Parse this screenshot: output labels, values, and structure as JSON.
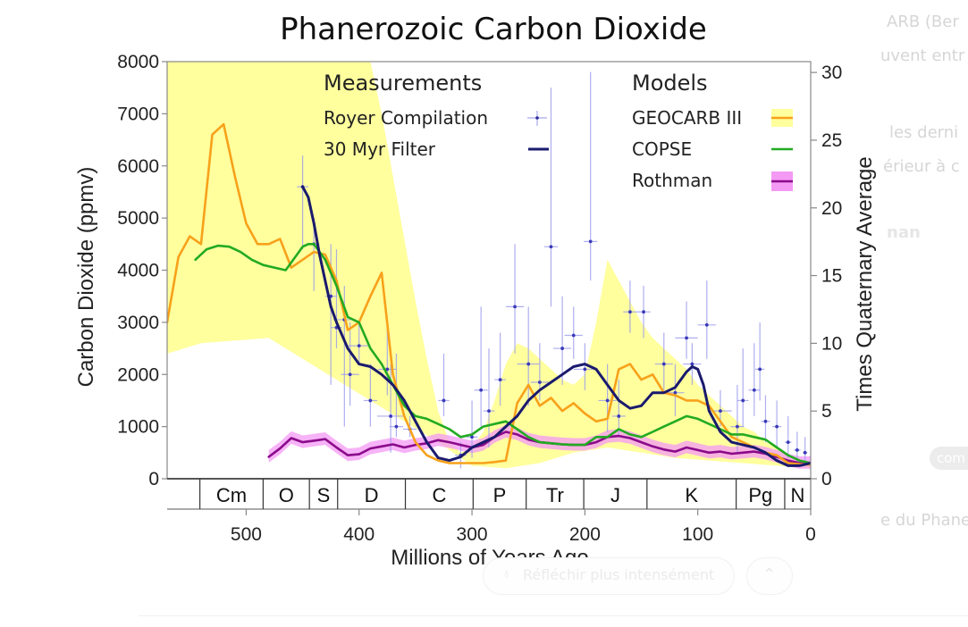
{
  "background_ui": {
    "right_text_lines": [
      "ARB (Ber",
      "uvent entr",
      "les derni",
      "érieur à c",
      "nan"
    ],
    "badge_label": "com",
    "caption_fragment": "e du Phane",
    "think_button_label": "Réfléchir plus intensément",
    "collapse_icon": "chevron-up-icon"
  },
  "chart_data": {
    "type": "line",
    "title": "Phanerozoic Carbon Dioxide",
    "xlabel": "Millions of Years Ago",
    "ylabel": "Carbon Dioxide (ppmv)",
    "y2label": "Times Quaternary Average",
    "xlim": [
      570,
      0
    ],
    "ylim": [
      0,
      8000
    ],
    "y2lim": [
      0,
      30.8
    ],
    "xticks": [
      500,
      400,
      300,
      200,
      100,
      0
    ],
    "yticks": [
      0,
      1000,
      2000,
      3000,
      4000,
      5000,
      6000,
      7000,
      8000
    ],
    "y2ticks": [
      0,
      5,
      10,
      15,
      20,
      25,
      30
    ],
    "grid": false,
    "legend_placement": "top",
    "legend": {
      "measurements_heading": "Measurements",
      "models_heading": "Models",
      "items": [
        {
          "label": "Royer Compilation",
          "group": "Measurements",
          "symbol": "cross"
        },
        {
          "label": "30 Myr Filter",
          "group": "Measurements",
          "symbol": "line"
        },
        {
          "label": "GEOCARB III",
          "group": "Models",
          "symbol": "line-band"
        },
        {
          "label": "COPSE",
          "group": "Models",
          "symbol": "line"
        },
        {
          "label": "Rothman",
          "group": "Models",
          "symbol": "line-band"
        }
      ]
    },
    "colors": {
      "geocarb": "#f7a11a",
      "geocarb_band": "#ffff9e",
      "copse": "#22aa22",
      "rothman": "#8b0a8b",
      "rothman_band": "#f49af4",
      "filter": "#1a1a6e",
      "royer": "#3a3ab8",
      "royer_bar": "#9a9aee"
    },
    "geological_periods": [
      {
        "label": "",
        "start": 570,
        "end": 541
      },
      {
        "label": "Cm",
        "start": 541,
        "end": 485
      },
      {
        "label": "O",
        "start": 485,
        "end": 444
      },
      {
        "label": "S",
        "start": 444,
        "end": 419
      },
      {
        "label": "D",
        "start": 419,
        "end": 359
      },
      {
        "label": "C",
        "start": 359,
        "end": 299
      },
      {
        "label": "P",
        "start": 299,
        "end": 252
      },
      {
        "label": "Tr",
        "start": 252,
        "end": 201
      },
      {
        "label": "J",
        "start": 201,
        "end": 145
      },
      {
        "label": "K",
        "start": 145,
        "end": 66
      },
      {
        "label": "Pg",
        "start": 66,
        "end": 23
      },
      {
        "label": "N",
        "start": 23,
        "end": 0
      }
    ],
    "series": [
      {
        "name": "GEOCARB III",
        "x": [
          570,
          560,
          550,
          540,
          530,
          520,
          510,
          500,
          490,
          480,
          470,
          460,
          450,
          440,
          430,
          420,
          410,
          400,
          390,
          380,
          370,
          360,
          350,
          340,
          330,
          320,
          310,
          300,
          290,
          280,
          270,
          260,
          250,
          240,
          230,
          220,
          210,
          200,
          190,
          180,
          170,
          160,
          150,
          140,
          130,
          120,
          110,
          100,
          90,
          80,
          70,
          60,
          50,
          40,
          30,
          20,
          10,
          0
        ],
        "y": [
          3000,
          4250,
          4650,
          4500,
          6600,
          6800,
          5800,
          4900,
          4500,
          4500,
          4600,
          4050,
          4200,
          4350,
          4300,
          3800,
          2850,
          3000,
          3500,
          3950,
          2000,
          1200,
          700,
          450,
          350,
          300,
          300,
          300,
          300,
          320,
          350,
          1450,
          1800,
          1400,
          1550,
          1300,
          1450,
          1250,
          1100,
          1150,
          2100,
          2200,
          1900,
          2000,
          1650,
          1600,
          1500,
          1500,
          1400,
          1100,
          800,
          700,
          600,
          500,
          450,
          300,
          280,
          270
        ]
      },
      {
        "name": "GEOCARB III range upper",
        "x": [
          570,
          560,
          550,
          540,
          530,
          520,
          510,
          500,
          490,
          480,
          470,
          460,
          450,
          440,
          430,
          420,
          410,
          400,
          390,
          380,
          370,
          360,
          350,
          340,
          330,
          320,
          310,
          300,
          290,
          280,
          270,
          260,
          250,
          240,
          230,
          220,
          210,
          200,
          190,
          180,
          170,
          160,
          150,
          140,
          130,
          120,
          110,
          100,
          90,
          80,
          70,
          60,
          50,
          40,
          30,
          20,
          10,
          0
        ],
        "y": [
          8000,
          8000,
          8000,
          8000,
          8000,
          8000,
          8000,
          8000,
          8000,
          8000,
          8000,
          8000,
          8000,
          8000,
          8000,
          8000,
          8000,
          8000,
          8000,
          7000,
          5800,
          4600,
          3400,
          2300,
          1300,
          700,
          500,
          600,
          900,
          1500,
          2200,
          2600,
          2500,
          2300,
          2100,
          1900,
          1800,
          2000,
          3000,
          4200,
          3800,
          3400,
          3000,
          2700,
          2500,
          2300,
          2100,
          1800,
          1600,
          1400,
          1200,
          1000,
          900,
          700,
          600,
          400,
          330,
          300
        ]
      },
      {
        "name": "GEOCARB III range lower",
        "x": [
          570,
          540,
          480,
          450,
          420,
          390,
          360,
          330,
          300,
          270,
          240,
          210,
          180,
          150,
          120,
          90,
          60,
          30,
          0
        ],
        "y": [
          2400,
          2600,
          2700,
          2300,
          1900,
          1500,
          1100,
          700,
          250,
          200,
          300,
          500,
          600,
          500,
          400,
          350,
          300,
          250,
          200
        ]
      },
      {
        "name": "COPSE",
        "x": [
          545,
          535,
          525,
          515,
          505,
          495,
          485,
          475,
          465,
          455,
          450,
          445,
          440,
          430,
          420,
          410,
          400,
          390,
          380,
          370,
          360,
          350,
          340,
          330,
          320,
          310,
          300,
          290,
          280,
          270,
          260,
          250,
          240,
          230,
          220,
          210,
          200,
          190,
          180,
          170,
          160,
          150,
          140,
          130,
          120,
          110,
          100,
          90,
          80,
          70,
          60,
          50,
          40,
          30,
          20,
          10,
          0
        ],
        "y": [
          4200,
          4400,
          4470,
          4450,
          4350,
          4200,
          4100,
          4050,
          4000,
          4300,
          4450,
          4500,
          4500,
          4200,
          3700,
          3100,
          3000,
          2500,
          2200,
          1800,
          1400,
          1200,
          1150,
          1050,
          950,
          800,
          850,
          1000,
          1050,
          1100,
          950,
          800,
          700,
          680,
          660,
          650,
          650,
          800,
          800,
          950,
          850,
          800,
          900,
          1000,
          1100,
          1200,
          1150,
          1050,
          950,
          850,
          850,
          800,
          750,
          600,
          450,
          350,
          300
        ]
      },
      {
        "name": "Rothman",
        "x": [
          480,
          470,
          460,
          450,
          440,
          430,
          420,
          410,
          400,
          390,
          380,
          370,
          360,
          350,
          340,
          330,
          320,
          310,
          300,
          290,
          280,
          270,
          260,
          250,
          240,
          230,
          220,
          210,
          200,
          190,
          180,
          170,
          160,
          150,
          140,
          130,
          120,
          110,
          100,
          90,
          80,
          70,
          60,
          50,
          40,
          30,
          20,
          10,
          0
        ],
        "y": [
          420,
          580,
          780,
          700,
          730,
          760,
          600,
          450,
          470,
          580,
          620,
          660,
          600,
          650,
          680,
          740,
          700,
          650,
          600,
          650,
          800,
          900,
          850,
          750,
          700,
          680,
          660,
          650,
          650,
          700,
          800,
          820,
          780,
          700,
          620,
          560,
          520,
          600,
          550,
          500,
          520,
          480,
          500,
          520,
          480,
          420,
          350,
          300,
          300
        ]
      },
      {
        "name": "30 Myr Filter",
        "x": [
          450,
          445,
          440,
          435,
          430,
          425,
          420,
          410,
          400,
          390,
          380,
          370,
          360,
          350,
          340,
          330,
          320,
          310,
          300,
          290,
          280,
          270,
          260,
          250,
          240,
          230,
          220,
          210,
          200,
          190,
          180,
          170,
          160,
          150,
          140,
          130,
          120,
          110,
          105,
          100,
          95,
          90,
          80,
          70,
          60,
          50,
          40,
          30,
          20,
          10,
          0
        ],
        "y": [
          5600,
          5400,
          4900,
          4300,
          3800,
          3300,
          3000,
          2500,
          2200,
          2150,
          2000,
          1800,
          1500,
          1100,
          700,
          400,
          350,
          420,
          600,
          700,
          800,
          1000,
          1200,
          1500,
          1700,
          1850,
          2000,
          2150,
          2200,
          2100,
          1800,
          1500,
          1350,
          1400,
          1650,
          1650,
          1750,
          2050,
          2150,
          2100,
          1800,
          1300,
          900,
          700,
          650,
          600,
          500,
          350,
          250,
          250,
          300
        ]
      }
    ],
    "royer_points": [
      {
        "x": 450,
        "y": 5600,
        "ylo": 4400,
        "yhi": 6200,
        "xerr": 5
      },
      {
        "x": 440,
        "y": 4500,
        "ylo": 3600,
        "yhi": 5000,
        "xerr": 5
      },
      {
        "x": 425,
        "y": 3500,
        "ylo": 1800,
        "yhi": 4500,
        "xerr": 5
      },
      {
        "x": 420,
        "y": 2900,
        "ylo": 2500,
        "yhi": 4400,
        "xerr": 5
      },
      {
        "x": 413,
        "y": 3050,
        "ylo": 1000,
        "yhi": 3700,
        "xerr": 10
      },
      {
        "x": 408,
        "y": 2000,
        "ylo": 1400,
        "yhi": 3000,
        "xerr": 8
      },
      {
        "x": 400,
        "y": 2550,
        "ylo": 2200,
        "yhi": 3000,
        "xerr": 10
      },
      {
        "x": 390,
        "y": 1500,
        "ylo": 1000,
        "yhi": 2200,
        "xerr": 6
      },
      {
        "x": 375,
        "y": 2100,
        "ylo": 1600,
        "yhi": 3000,
        "xerr": 8
      },
      {
        "x": 372,
        "y": 1200,
        "ylo": 500,
        "yhi": 2200,
        "xerr": 12
      },
      {
        "x": 367,
        "y": 1000,
        "ylo": 800,
        "yhi": 2400,
        "xerr": 6
      },
      {
        "x": 355,
        "y": 950,
        "ylo": 800,
        "yhi": 1200,
        "xerr": 6
      },
      {
        "x": 325,
        "y": 1500,
        "ylo": 1200,
        "yhi": 2400,
        "xerr": 5
      },
      {
        "x": 310,
        "y": 450,
        "ylo": 200,
        "yhi": 700,
        "xerr": 5
      },
      {
        "x": 300,
        "y": 800,
        "ylo": 400,
        "yhi": 1500,
        "xerr": 5
      },
      {
        "x": 292,
        "y": 1700,
        "ylo": 1000,
        "yhi": 3300,
        "xerr": 6
      },
      {
        "x": 285,
        "y": 1300,
        "ylo": 600,
        "yhi": 2500,
        "xerr": 5
      },
      {
        "x": 275,
        "y": 1900,
        "ylo": 1400,
        "yhi": 2800,
        "xerr": 5
      },
      {
        "x": 262,
        "y": 3300,
        "ylo": 2400,
        "yhi": 4500,
        "xerr": 8
      },
      {
        "x": 250,
        "y": 2200,
        "ylo": 1400,
        "yhi": 3300,
        "xerr": 10
      },
      {
        "x": 240,
        "y": 1850,
        "ylo": 1500,
        "yhi": 2600,
        "xerr": 8
      },
      {
        "x": 230,
        "y": 4450,
        "ylo": 3300,
        "yhi": 7500,
        "xerr": 6
      },
      {
        "x": 220,
        "y": 2500,
        "ylo": 1800,
        "yhi": 3500,
        "xerr": 8
      },
      {
        "x": 210,
        "y": 2750,
        "ylo": 2300,
        "yhi": 3300,
        "xerr": 8
      },
      {
        "x": 200,
        "y": 2100,
        "ylo": 1700,
        "yhi": 2600,
        "xerr": 10
      },
      {
        "x": 195,
        "y": 4550,
        "ylo": 3800,
        "yhi": 7800,
        "xerr": 6
      },
      {
        "x": 180,
        "y": 1500,
        "ylo": 900,
        "yhi": 2200,
        "xerr": 8
      },
      {
        "x": 170,
        "y": 1200,
        "ylo": 800,
        "yhi": 1900,
        "xerr": 6
      },
      {
        "x": 160,
        "y": 3200,
        "ylo": 2800,
        "yhi": 3800,
        "xerr": 6
      },
      {
        "x": 148,
        "y": 3200,
        "ylo": 2700,
        "yhi": 3700,
        "xerr": 6
      },
      {
        "x": 130,
        "y": 2200,
        "ylo": 1700,
        "yhi": 2800,
        "xerr": 8
      },
      {
        "x": 120,
        "y": 1650,
        "ylo": 1200,
        "yhi": 2200,
        "xerr": 8
      },
      {
        "x": 110,
        "y": 2700,
        "ylo": 2300,
        "yhi": 3400,
        "xerr": 10
      },
      {
        "x": 105,
        "y": 2200,
        "ylo": 1800,
        "yhi": 2600,
        "xerr": 8
      },
      {
        "x": 92,
        "y": 2950,
        "ylo": 2300,
        "yhi": 3800,
        "xerr": 8
      },
      {
        "x": 80,
        "y": 1300,
        "ylo": 1000,
        "yhi": 1700,
        "xerr": 10
      },
      {
        "x": 65,
        "y": 1000,
        "ylo": 500,
        "yhi": 1800,
        "xerr": 6
      },
      {
        "x": 60,
        "y": 1500,
        "ylo": 1000,
        "yhi": 2500,
        "xerr": 5
      },
      {
        "x": 50,
        "y": 1700,
        "ylo": 1200,
        "yhi": 2600,
        "xerr": 5
      },
      {
        "x": 45,
        "y": 2100,
        "ylo": 1500,
        "yhi": 3000,
        "xerr": 4
      },
      {
        "x": 40,
        "y": 1100,
        "ylo": 700,
        "yhi": 1600,
        "xerr": 4
      },
      {
        "x": 30,
        "y": 1000,
        "ylo": 600,
        "yhi": 1500,
        "xerr": 4
      },
      {
        "x": 20,
        "y": 700,
        "ylo": 400,
        "yhi": 1200,
        "xerr": 3
      },
      {
        "x": 12,
        "y": 550,
        "ylo": 300,
        "yhi": 900,
        "xerr": 3
      },
      {
        "x": 5,
        "y": 500,
        "ylo": 300,
        "yhi": 800,
        "xerr": 2
      }
    ]
  }
}
